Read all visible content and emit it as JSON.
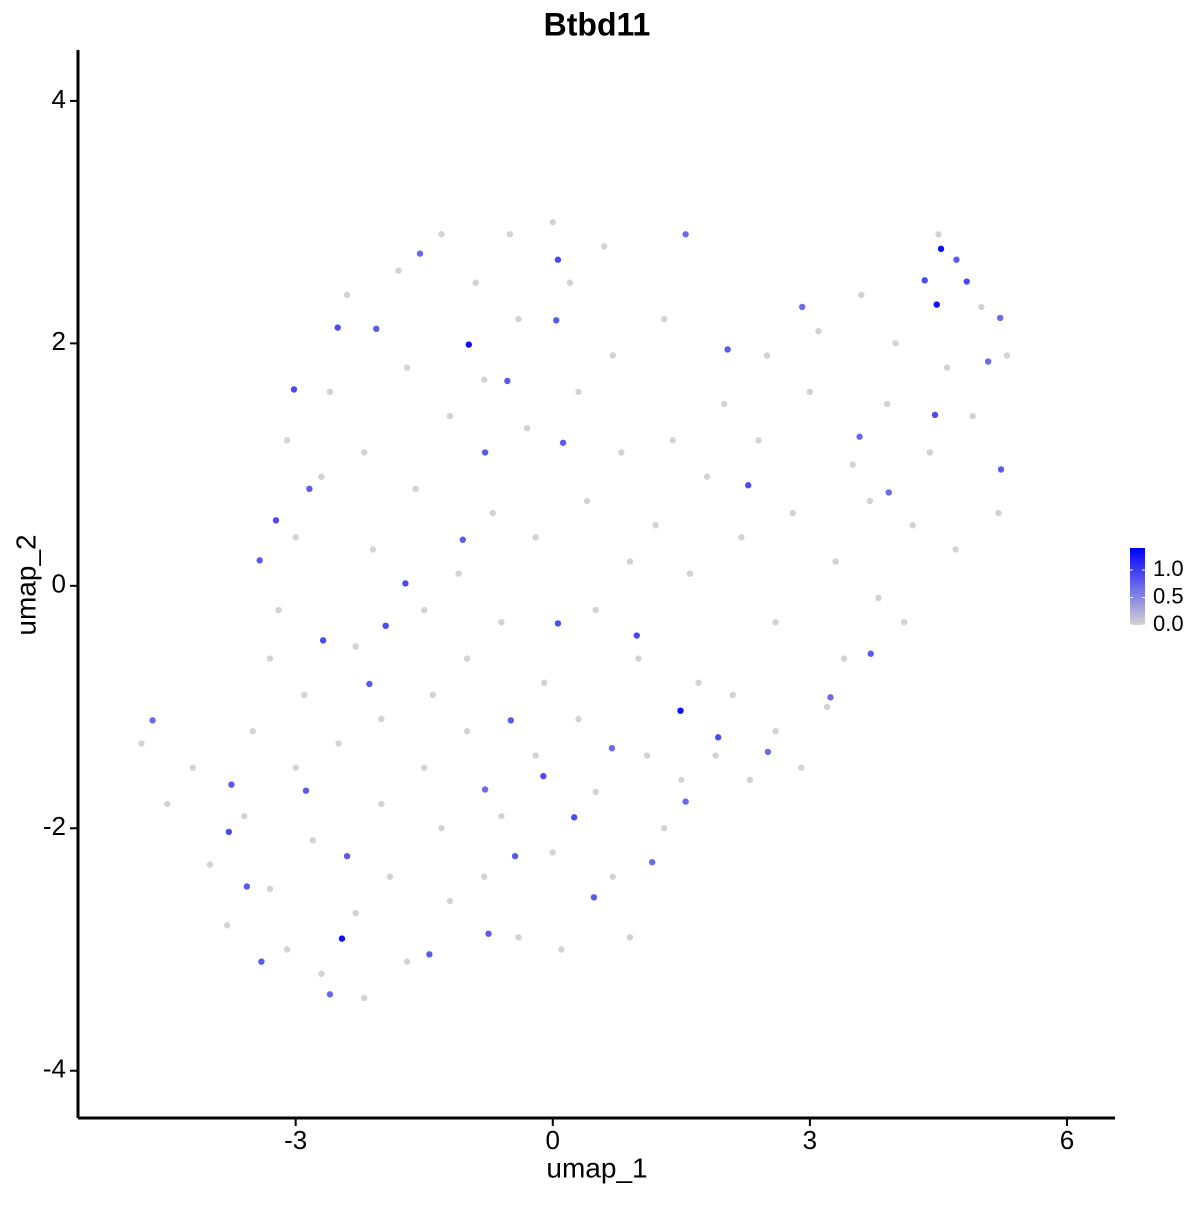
{
  "chart_data": {
    "type": "scatter",
    "title": "Btbd11",
    "x_label": "umap_1",
    "y_label": "umap_2",
    "xlim": [
      -5.54,
      6.56
    ],
    "ylim": [
      -4.39,
      4.42
    ],
    "xticks": [
      -3,
      0,
      3,
      6
    ],
    "yticks": [
      -4,
      -2,
      0,
      2,
      4
    ],
    "x": [
      -3.1,
      -3.0,
      -3.2,
      -3.3,
      -2.9,
      -2.7,
      -2.6,
      -2.4,
      -2.2,
      -2.1,
      -2.3,
      -2.0,
      -1.8,
      -1.7,
      -1.6,
      -1.5,
      -1.4,
      -1.3,
      -1.2,
      -1.1,
      -1.0,
      -0.9,
      -0.8,
      -0.7,
      -0.6,
      -0.5,
      -0.4,
      -0.3,
      -0.2,
      -0.1,
      0.0,
      0.2,
      0.3,
      0.4,
      0.5,
      0.6,
      0.7,
      0.8,
      0.9,
      1.0,
      -4.8,
      -4.5,
      -4.2,
      -4.0,
      -3.8,
      -3.6,
      -3.5,
      -3.3,
      -3.1,
      -3.0,
      -2.8,
      -2.7,
      -2.5,
      -2.3,
      -2.2,
      -2.0,
      -1.9,
      -1.7,
      -1.5,
      -1.3,
      -1.2,
      -1.0,
      -0.8,
      -0.6,
      -0.4,
      -0.2,
      0.0,
      0.1,
      0.3,
      0.5,
      0.7,
      0.9,
      1.1,
      1.3,
      1.5,
      1.7,
      1.9,
      2.1,
      2.3,
      2.6,
      2.9,
      3.2,
      3.4,
      1.2,
      1.4,
      1.6,
      1.8,
      2.0,
      2.2,
      2.4,
      2.6,
      2.8,
      3.0,
      3.1,
      3.3,
      3.5,
      3.6,
      3.8,
      3.9,
      4.0,
      4.2,
      4.4,
      4.5,
      4.6,
      4.7,
      4.9,
      5.0,
      5.2,
      5.3,
      4.1,
      3.7,
      2.5,
      1.3,
      -4.67,
      -3.78,
      -3.42,
      -3.23,
      -3.02,
      -2.68,
      -1.72,
      -1.95,
      -1.55,
      -2.06,
      -0.53,
      -0.79,
      0.06,
      0.04,
      0.12,
      0.06,
      0.98,
      -0.11,
      0.25,
      0.48,
      1.16,
      1.93,
      2.04,
      2.28,
      3.71,
      3.24,
      4.83,
      4.34,
      4.71,
      5.22,
      5.08,
      4.46,
      5.23,
      3.92,
      1.55,
      -1.05,
      -3.57,
      -3.4,
      -2.6,
      -2.88,
      -2.4,
      -1.44,
      -0.75,
      -0.44,
      -0.79,
      -0.49,
      0.69,
      1.55,
      2.51,
      3.58,
      2.91,
      -2.51,
      -2.84,
      -2.14,
      -3.75,
      -0.98,
      4.53,
      4.48,
      1.49,
      -2.46
    ],
    "y": [
      1.2,
      0.4,
      -0.2,
      -0.6,
      -0.9,
      0.9,
      1.6,
      2.4,
      1.1,
      0.3,
      -0.5,
      -1.1,
      2.6,
      1.8,
      0.8,
      -0.2,
      -0.9,
      2.9,
      1.4,
      0.1,
      -0.6,
      2.5,
      1.7,
      0.6,
      -0.3,
      2.9,
      2.2,
      1.3,
      0.4,
      -0.8,
      3.0,
      2.5,
      1.6,
      0.7,
      -0.2,
      2.8,
      1.9,
      1.1,
      0.2,
      -0.6,
      -1.3,
      -1.8,
      -1.5,
      -2.3,
      -2.8,
      -1.9,
      -1.2,
      -2.5,
      -3.0,
      -1.5,
      -2.1,
      -3.2,
      -1.3,
      -2.7,
      -3.4,
      -1.8,
      -2.4,
      -3.1,
      -1.5,
      -2.0,
      -2.6,
      -1.2,
      -2.4,
      -1.9,
      -2.9,
      -1.4,
      -2.2,
      -3.0,
      -1.1,
      -1.7,
      -2.4,
      -2.9,
      -1.4,
      -2.0,
      -1.6,
      -0.8,
      -1.4,
      -0.9,
      -1.6,
      -1.2,
      -1.5,
      -1.0,
      -0.6,
      0.5,
      1.2,
      0.1,
      0.9,
      1.5,
      0.4,
      1.2,
      -0.3,
      0.6,
      1.6,
      2.1,
      0.2,
      1.0,
      2.4,
      -0.1,
      1.5,
      2.0,
      0.5,
      1.1,
      2.9,
      1.8,
      0.3,
      1.4,
      2.3,
      0.6,
      1.9,
      -0.3,
      0.7,
      1.9,
      2.2,
      -1.11,
      -2.03,
      0.21,
      0.54,
      1.62,
      -0.45,
      0.02,
      -0.33,
      2.74,
      2.12,
      1.69,
      1.1,
      2.69,
      2.19,
      1.18,
      -0.31,
      -0.41,
      -1.57,
      -1.91,
      -2.57,
      -2.28,
      -1.25,
      1.95,
      0.83,
      -0.56,
      -0.92,
      2.51,
      2.52,
      2.69,
      2.21,
      1.85,
      1.41,
      0.96,
      0.77,
      2.9,
      0.38,
      -2.48,
      -3.1,
      -3.37,
      -1.69,
      -2.23,
      -3.04,
      -2.87,
      -2.23,
      -1.68,
      -1.11,
      -1.34,
      -1.78,
      -1.37,
      1.23,
      2.3,
      2.13,
      0.8,
      -0.81,
      -1.64,
      1.99,
      2.78,
      2.32,
      -1.03,
      -2.91
    ],
    "values": [
      0,
      0,
      0,
      0,
      0,
      0,
      0,
      0,
      0,
      0,
      0,
      0,
      0,
      0,
      0,
      0,
      0,
      0,
      0,
      0,
      0,
      0,
      0,
      0,
      0,
      0,
      0,
      0,
      0,
      0,
      0,
      0,
      0,
      0,
      0,
      0,
      0,
      0,
      0,
      0,
      0,
      0,
      0,
      0,
      0,
      0,
      0,
      0,
      0,
      0,
      0,
      0,
      0,
      0,
      0,
      0,
      0,
      0,
      0,
      0,
      0,
      0,
      0,
      0,
      0,
      0,
      0,
      0,
      0,
      0,
      0,
      0,
      0,
      0,
      0,
      0,
      0,
      0,
      0,
      0,
      0,
      0,
      0,
      0,
      0,
      0,
      0,
      0,
      0,
      0,
      0,
      0,
      0,
      0,
      0,
      0,
      0,
      0,
      0,
      0,
      0,
      0,
      0,
      0,
      0,
      0,
      0,
      0,
      0,
      0,
      0,
      0,
      0,
      0.7,
      0.9,
      0.8,
      0.9,
      0.9,
      0.9,
      0.9,
      0.9,
      0.7,
      0.8,
      0.8,
      0.8,
      0.9,
      0.8,
      0.8,
      0.9,
      0.9,
      0.9,
      0.9,
      0.8,
      0.7,
      0.9,
      0.8,
      0.9,
      0.8,
      0.7,
      0.9,
      0.9,
      0.8,
      0.7,
      0.7,
      0.9,
      0.8,
      0.7,
      0.7,
      0.8,
      0.8,
      0.8,
      0.7,
      0.8,
      0.8,
      0.8,
      0.8,
      0.8,
      0.7,
      0.8,
      0.7,
      0.7,
      0.7,
      0.7,
      0.7,
      0.9,
      0.8,
      0.8,
      0.8,
      1.3,
      1.3,
      1.3,
      1.3,
      1.3
    ],
    "colorbar": {
      "lim": [
        0,
        1.4
      ],
      "colors": [
        "#d3d3d3",
        "#0000ff"
      ],
      "ticks": [
        {
          "value": 0,
          "label": "0.0"
        },
        {
          "value": 0.5,
          "label": "0.5"
        },
        {
          "value": 1,
          "label": "1.0"
        }
      ]
    }
  }
}
